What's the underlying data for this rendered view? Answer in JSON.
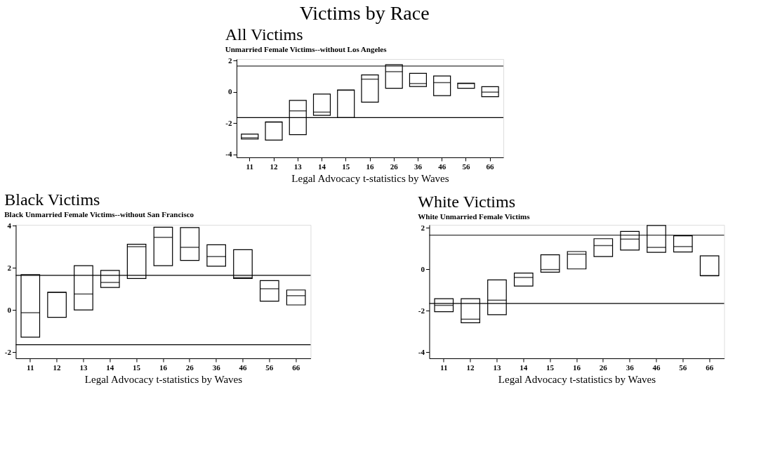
{
  "chart_data": [
    {
      "type": "box",
      "title": "All Victims",
      "subtitle": "Unmarried Female Victims--without Los Angeles",
      "xlabel": "Legal Advocacy t-statistics by Waves",
      "annotations": [
        "Victims by Race"
      ],
      "categories": [
        "11",
        "12",
        "13",
        "14",
        "15",
        "16",
        "26",
        "36",
        "46",
        "56",
        "66"
      ],
      "boxes": [
        {
          "low": -3.03,
          "q1": -3.03,
          "median": -2.95,
          "q3": -2.71,
          "high": -2.71
        },
        {
          "low": -3.09,
          "q1": -3.09,
          "median": -1.93,
          "q3": -1.93,
          "high": -1.93
        },
        {
          "low": -2.74,
          "q1": -2.74,
          "median": -1.22,
          "q3": -0.55,
          "high": -0.55
        },
        {
          "low": -1.51,
          "q1": -1.51,
          "median": -1.3,
          "q3": -0.14,
          "high": -0.14
        },
        {
          "low": -1.65,
          "q1": -1.65,
          "median": 0.1,
          "q3": 0.12,
          "high": 0.12
        },
        {
          "low": -0.66,
          "q1": -0.66,
          "median": 0.81,
          "q3": 1.08,
          "high": 1.08
        },
        {
          "low": 0.23,
          "q1": 0.23,
          "median": 1.29,
          "q3": 1.73,
          "high": 1.73
        },
        {
          "low": 0.34,
          "q1": 0.34,
          "median": 0.53,
          "q3": 1.18,
          "high": 1.18
        },
        {
          "low": -0.25,
          "q1": -0.25,
          "median": 0.59,
          "q3": 1.01,
          "high": 1.01
        },
        {
          "low": 0.23,
          "q1": 0.23,
          "median": 0.53,
          "q3": 0.55,
          "high": 0.55
        },
        {
          "low": -0.31,
          "q1": -0.31,
          "median": -0.02,
          "q3": 0.33,
          "high": 0.33
        }
      ],
      "ylim": [
        -4.2,
        2.1
      ],
      "yticks": [
        -4,
        -2,
        0,
        2
      ],
      "grid": false,
      "ref_lines": [
        {
          "axis": "y",
          "value": 1.65
        },
        {
          "axis": "y",
          "value": -1.65
        }
      ]
    },
    {
      "type": "box",
      "title": "Black Victims",
      "subtitle": "Black Unmarried Female Victims--without San Francisco",
      "xlabel": "Legal Advocacy t-statistics by Waves",
      "categories": [
        "11",
        "12",
        "13",
        "14",
        "15",
        "16",
        "26",
        "36",
        "46",
        "56",
        "66"
      ],
      "boxes": [
        {
          "low": -1.29,
          "q1": -1.29,
          "median": -0.13,
          "q3": 1.68,
          "high": 1.68
        },
        {
          "low": -0.35,
          "q1": -0.35,
          "median": 0.84,
          "q3": 0.84,
          "high": 0.84
        },
        {
          "low": 0.0,
          "q1": 0.0,
          "median": 0.76,
          "q3": 2.11,
          "high": 2.11
        },
        {
          "low": 1.07,
          "q1": 1.07,
          "median": 1.31,
          "q3": 1.88,
          "high": 1.88
        },
        {
          "low": 1.5,
          "q1": 1.5,
          "median": 3.01,
          "q3": 3.13,
          "high": 3.13
        },
        {
          "low": 2.11,
          "q1": 2.11,
          "median": 3.46,
          "q3": 3.94,
          "high": 3.94
        },
        {
          "low": 2.36,
          "q1": 2.36,
          "median": 2.98,
          "q3": 3.92,
          "high": 3.92
        },
        {
          "low": 2.08,
          "q1": 2.08,
          "median": 2.54,
          "q3": 3.1,
          "high": 3.1
        },
        {
          "low": 1.5,
          "q1": 1.5,
          "median": 1.54,
          "q3": 2.87,
          "high": 2.87
        },
        {
          "low": 0.42,
          "q1": 0.42,
          "median": 1.01,
          "q3": 1.4,
          "high": 1.4
        },
        {
          "low": 0.24,
          "q1": 0.24,
          "median": 0.68,
          "q3": 0.95,
          "high": 0.95
        }
      ],
      "ylim": [
        -2.3,
        4.05
      ],
      "yticks": [
        -2,
        0,
        2,
        4
      ],
      "grid": false,
      "ref_lines": [
        {
          "axis": "y",
          "value": 1.65
        },
        {
          "axis": "y",
          "value": -1.65
        }
      ]
    },
    {
      "type": "box",
      "title": "White Victims",
      "subtitle": "White Unmarried Female Victims",
      "xlabel": "Legal Advocacy t-statistics by Waves",
      "categories": [
        "11",
        "12",
        "13",
        "14",
        "15",
        "16",
        "26",
        "36",
        "46",
        "56",
        "66"
      ],
      "boxes": [
        {
          "low": -2.05,
          "q1": -2.05,
          "median": -1.74,
          "q3": -1.42,
          "high": -1.42
        },
        {
          "low": -2.58,
          "q1": -2.58,
          "median": -2.41,
          "q3": -1.42,
          "high": -1.42
        },
        {
          "low": -2.19,
          "q1": -2.19,
          "median": -1.49,
          "q3": -0.51,
          "high": -0.51
        },
        {
          "low": -0.81,
          "q1": -0.81,
          "median": -0.39,
          "q3": -0.18,
          "high": -0.18
        },
        {
          "low": -0.14,
          "q1": -0.14,
          "median": -0.01,
          "q3": 0.7,
          "high": 0.7
        },
        {
          "low": 0.02,
          "q1": 0.02,
          "median": 0.73,
          "q3": 0.86,
          "high": 0.86
        },
        {
          "low": 0.62,
          "q1": 0.62,
          "median": 1.15,
          "q3": 1.48,
          "high": 1.48
        },
        {
          "low": 0.93,
          "q1": 0.93,
          "median": 1.46,
          "q3": 1.83,
          "high": 1.83
        },
        {
          "low": 0.82,
          "q1": 0.82,
          "median": 1.06,
          "q3": 2.12,
          "high": 2.12
        },
        {
          "low": 0.84,
          "q1": 0.84,
          "median": 1.1,
          "q3": 1.62,
          "high": 1.62
        },
        {
          "low": -0.31,
          "q1": -0.31,
          "median": -0.31,
          "q3": 0.65,
          "high": 0.65
        }
      ],
      "ylim": [
        -4.3,
        2.15
      ],
      "yticks": [
        -4,
        -2,
        0,
        2
      ],
      "grid": false,
      "ref_lines": [
        {
          "axis": "y",
          "value": 1.65
        },
        {
          "axis": "y",
          "value": -1.65
        }
      ]
    }
  ]
}
